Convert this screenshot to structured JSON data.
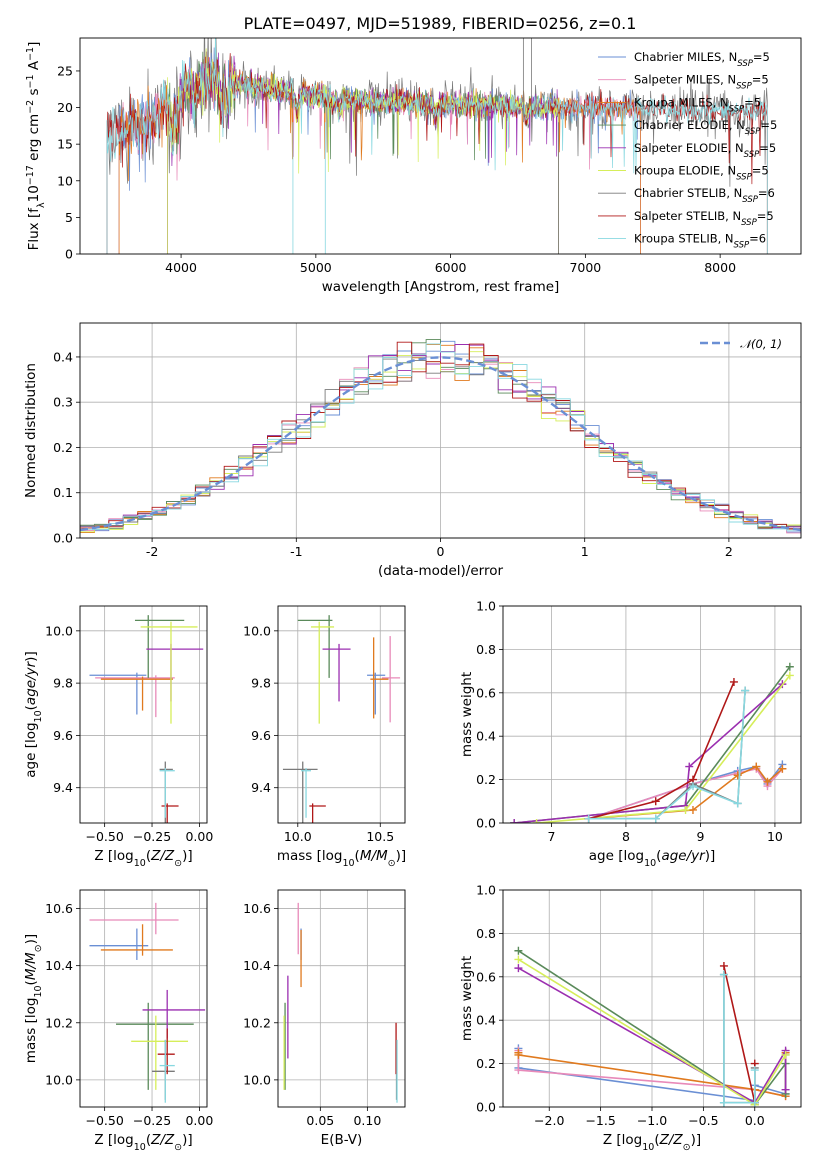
{
  "figure_title": "PLATE=0497, MJD=51989, FIBERID=0256, z=0.1",
  "colors": {
    "Chabrier MILES": "#6a8fd4",
    "Salpeter MILES": "#e88ab9",
    "Kroupa MILES": "#e07a1f",
    "Chabrier ELODIE": "#5a8a5a",
    "Salpeter ELODIE": "#9b2fb0",
    "Kroupa ELODIE": "#d6ee5a",
    "Chabrier STELIB": "#7a7a7a",
    "Salpeter STELIB": "#b01818",
    "Kroupa STELIB": "#88d8e0",
    "normal_curve": "#6a8fd4"
  },
  "chart_data": [
    {
      "type": "line",
      "xlabel": "wavelength [Angstrom, rest frame]",
      "ylabel": "Flux [f_λ 10^-17 erg cm^-2 s^-1 A^-1]",
      "xlim": [
        3250,
        8600
      ],
      "ylim": [
        0,
        29.5
      ],
      "xticks": [
        4000,
        5000,
        6000,
        7000,
        8000
      ],
      "yticks": [
        0,
        5,
        10,
        15,
        20,
        25
      ],
      "grid": false,
      "legend_position": "top-right",
      "legend": [
        {
          "base": "Chabrier MILES, N",
          "sub": "SSP",
          "tail": "=5",
          "color": "#6a8fd4"
        },
        {
          "base": "Salpeter MILES, N",
          "sub": "SSP",
          "tail": "=5",
          "color": "#e88ab9"
        },
        {
          "base": "Kroupa MILES, N",
          "sub": "SSP",
          "tail": "=5",
          "color": "#e07a1f"
        },
        {
          "base": "Chabrier ELODIE, N",
          "sub": "SSP",
          "tail": "=5",
          "color": "#5a8a5a"
        },
        {
          "base": "Salpeter ELODIE, N",
          "sub": "SSP",
          "tail": "=5",
          "color": "#9b2fb0"
        },
        {
          "base": "Kroupa ELODIE, N",
          "sub": "SSP",
          "tail": "=5",
          "color": "#d6ee5a"
        },
        {
          "base": "Chabrier STELIB, N",
          "sub": "SSP",
          "tail": "=6",
          "color": "#7a7a7a"
        },
        {
          "base": "Salpeter STELIB, N",
          "sub": "SSP",
          "tail": "=5",
          "color": "#b01818"
        },
        {
          "base": "Kroupa STELIB, N",
          "sub": "SSP",
          "tail": "=6",
          "color": "#88d8e0"
        }
      ],
      "approx_continuum": {
        "x": [
          3450,
          3600,
          3800,
          4000,
          4200,
          4500,
          5000,
          5500,
          6000,
          6500,
          7000,
          7500,
          8000,
          8350
        ],
        "y": [
          16.5,
          17.0,
          18.5,
          22.5,
          24.0,
          23.0,
          21.5,
          20.8,
          20.5,
          20.2,
          20.0,
          19.8,
          19.5,
          19.2
        ]
      },
      "model_start_x": {
        "Chabrier MILES": 3540,
        "Salpeter MILES": 3540,
        "Kroupa MILES": 3540,
        "Chabrier ELODIE": 3900,
        "Salpeter ELODIE": 3900,
        "Kroupa ELODIE": 3900,
        "Chabrier STELIB": 3450,
        "Salpeter STELIB": 3450,
        "Kroupa STELIB": 3450
      },
      "model_end_x": {
        "Chabrier MILES": 7410,
        "Salpeter MILES": 7410,
        "Kroupa MILES": 7410,
        "Chabrier ELODIE": 6800,
        "Salpeter ELODIE": 6800,
        "Kroupa ELODIE": 6800,
        "Chabrier STELIB": 8350,
        "Salpeter STELIB": 8350,
        "Kroupa STELIB": 8350
      }
    },
    {
      "type": "histogram",
      "xlabel": "(data-model)/error",
      "ylabel": "Normed distribution",
      "xlim": [
        -2.5,
        2.5
      ],
      "ylim": [
        0,
        0.475
      ],
      "xticks": [
        -2,
        -1,
        0,
        1,
        2
      ],
      "yticks": [
        0.0,
        0.1,
        0.2,
        0.3,
        0.4
      ],
      "grid": true,
      "legend_position": "top-right",
      "legend_label": "𝒩(0, 1)",
      "bin_width": 0.1,
      "reference_curve": "normal, mean 0, sigma 1"
    },
    {
      "type": "errorbar",
      "xlabel": "Z [log10(Z/Z⊙)]",
      "ylabel": "age [log10(age/yr)]",
      "xlim": [
        -0.63,
        0.04
      ],
      "ylim": [
        9.265,
        10.095
      ],
      "xticks": [
        -0.5,
        -0.25,
        0.0
      ],
      "xtick_labels": [
        "−0.50",
        "−0.25",
        "0.00"
      ],
      "yticks": [
        9.4,
        9.6,
        9.8,
        10.0
      ],
      "grid": true,
      "points": [
        {
          "model": "Chabrier MILES",
          "x": -0.33,
          "xerr": [
            0.25,
            0.05
          ],
          "y": 9.83,
          "yerr": [
            0.15,
            0.01
          ]
        },
        {
          "model": "Salpeter MILES",
          "x": -0.23,
          "xerr": [
            0.32,
            0.1
          ],
          "y": 9.82,
          "yerr": [
            0.15,
            0.01
          ]
        },
        {
          "model": "Kroupa MILES",
          "x": -0.3,
          "xerr": [
            0.22,
            0.16
          ],
          "y": 9.815,
          "yerr": [
            0.12,
            0.01
          ]
        },
        {
          "model": "Chabrier ELODIE",
          "x": -0.27,
          "xerr": [
            0.07,
            0.19
          ],
          "y": 10.04,
          "yerr": [
            0.22,
            0.02
          ]
        },
        {
          "model": "Salpeter ELODIE",
          "x": -0.15,
          "xerr": [
            0.13,
            0.17
          ],
          "y": 9.93,
          "yerr": [
            0.2,
            0.02
          ]
        },
        {
          "model": "Kroupa ELODIE",
          "x": -0.15,
          "xerr": [
            0.16,
            0.14
          ],
          "y": 10.015,
          "yerr": [
            0.37,
            0.02
          ]
        },
        {
          "model": "Chabrier STELIB",
          "x": -0.18,
          "xerr": [
            0.03,
            0.04
          ],
          "y": 9.47,
          "yerr": [
            0.35,
            0.03
          ]
        },
        {
          "model": "Salpeter STELIB",
          "x": -0.17,
          "xerr": [
            0.03,
            0.06
          ],
          "y": 9.33,
          "yerr": [
            0.31,
            0.01
          ]
        },
        {
          "model": "Kroupa STELIB",
          "x": -0.18,
          "xerr": [
            0.03,
            0.05
          ],
          "y": 9.465,
          "yerr": [
            0.18,
            0.01
          ]
        }
      ]
    },
    {
      "type": "errorbar",
      "xlabel": "mass [log10(M/M⊙)]",
      "ylabel": "",
      "xlim": [
        9.88,
        10.65
      ],
      "ylim": [
        9.265,
        10.095
      ],
      "xticks": [
        10.0,
        10.5
      ],
      "xtick_labels": [
        "10.0",
        "10.5"
      ],
      "yticks": [
        9.4,
        9.6,
        9.8,
        10.0
      ],
      "grid": true,
      "points": [
        {
          "model": "Chabrier MILES",
          "x": 10.47,
          "xerr": [
            0.05,
            0.06
          ],
          "y": 9.83,
          "yerr": [
            0.15,
            0.01
          ]
        },
        {
          "model": "Salpeter MILES",
          "x": 10.56,
          "xerr": [
            0.05,
            0.06
          ],
          "y": 9.82,
          "yerr": [
            0.17,
            0.16
          ]
        },
        {
          "model": "Kroupa MILES",
          "x": 10.46,
          "xerr": [
            0.02,
            0.09
          ],
          "y": 9.815,
          "yerr": [
            0.15,
            0.16
          ]
        },
        {
          "model": "Chabrier ELODIE",
          "x": 10.19,
          "xerr": [
            0.19,
            0.02
          ],
          "y": 10.04,
          "yerr": [
            0.22,
            0.02
          ]
        },
        {
          "model": "Salpeter ELODIE",
          "x": 10.25,
          "xerr": [
            0.1,
            0.07
          ],
          "y": 9.93,
          "yerr": [
            0.2,
            0.02
          ]
        },
        {
          "model": "Kroupa ELODIE",
          "x": 10.13,
          "xerr": [
            0.05,
            0.09
          ],
          "y": 10.015,
          "yerr": [
            0.37,
            0.02
          ]
        },
        {
          "model": "Chabrier STELIB",
          "x": 10.03,
          "xerr": [
            0.12,
            0.09
          ],
          "y": 9.47,
          "yerr": [
            0.3,
            0.03
          ]
        },
        {
          "model": "Salpeter STELIB",
          "x": 10.09,
          "xerr": [
            0.02,
            0.08
          ],
          "y": 9.33,
          "yerr": [
            0.31,
            0.01
          ]
        },
        {
          "model": "Kroupa STELIB",
          "x": 10.05,
          "xerr": [
            0.03,
            0.03
          ],
          "y": 9.465,
          "yerr": [
            0.18,
            0.01
          ]
        }
      ]
    },
    {
      "type": "line",
      "xlabel": "age [log10(age/yr)]",
      "ylabel": "mass weight",
      "xlim": [
        6.35,
        10.35
      ],
      "ylim": [
        0,
        1.0
      ],
      "xticks": [
        7,
        8,
        9,
        10
      ],
      "yticks": [
        0.0,
        0.2,
        0.4,
        0.6,
        0.8,
        1.0
      ],
      "grid": true,
      "series": [
        {
          "model": "Chabrier MILES",
          "x": [
            7.5,
            8.9,
            9.5,
            9.75,
            9.9,
            10.1
          ],
          "y": [
            0.02,
            0.18,
            0.24,
            0.26,
            0.18,
            0.27
          ]
        },
        {
          "model": "Salpeter MILES",
          "x": [
            7.5,
            8.9,
            9.5,
            9.75,
            9.9,
            10.1
          ],
          "y": [
            0.02,
            0.18,
            0.23,
            0.25,
            0.17,
            0.25
          ]
        },
        {
          "model": "Kroupa MILES",
          "x": [
            7.5,
            8.9,
            9.5,
            9.75,
            9.9,
            10.1
          ],
          "y": [
            0.02,
            0.06,
            0.22,
            0.26,
            0.19,
            0.25
          ]
        },
        {
          "model": "Chabrier ELODIE",
          "x": [
            6.5,
            8.8,
            10.2
          ],
          "y": [
            0.0,
            0.08,
            0.72
          ]
        },
        {
          "model": "Salpeter ELODIE",
          "x": [
            6.5,
            8.8,
            8.85,
            10.1
          ],
          "y": [
            0.0,
            0.08,
            0.26,
            0.64
          ]
        },
        {
          "model": "Kroupa ELODIE",
          "x": [
            6.8,
            8.8,
            10.2
          ],
          "y": [
            0.0,
            0.06,
            0.68
          ]
        },
        {
          "model": "Chabrier STELIB",
          "x": [
            7.5,
            8.4,
            8.9,
            9.5,
            9.6
          ],
          "y": [
            0.02,
            0.02,
            0.18,
            0.09,
            0.61
          ]
        },
        {
          "model": "Salpeter STELIB",
          "x": [
            7.5,
            8.4,
            8.9,
            9.45
          ],
          "y": [
            0.02,
            0.1,
            0.2,
            0.65
          ]
        },
        {
          "model": "Kroupa STELIB",
          "x": [
            7.5,
            8.4,
            8.9,
            9.5,
            9.6
          ],
          "y": [
            0.02,
            0.02,
            0.17,
            0.09,
            0.61
          ]
        }
      ]
    },
    {
      "type": "errorbar",
      "xlabel": "Z [log10(Z/Z⊙)]",
      "ylabel": "mass [log10(M/M⊙)]",
      "xlim": [
        -0.63,
        0.04
      ],
      "ylim": [
        9.905,
        10.665
      ],
      "xticks": [
        -0.5,
        -0.25,
        0.0
      ],
      "xtick_labels": [
        "−0.50",
        "−0.25",
        "0.00"
      ],
      "yticks": [
        10.0,
        10.2,
        10.4,
        10.6
      ],
      "grid": true,
      "points": [
        {
          "model": "Chabrier MILES",
          "x": -0.33,
          "xerr": [
            0.25,
            0.06
          ],
          "y": 10.47,
          "yerr": [
            0.05,
            0.06
          ]
        },
        {
          "model": "Salpeter MILES",
          "x": -0.23,
          "xerr": [
            0.35,
            0.12
          ],
          "y": 10.56,
          "yerr": [
            0.05,
            0.06
          ]
        },
        {
          "model": "Kroupa MILES",
          "x": -0.3,
          "xerr": [
            0.22,
            0.16
          ],
          "y": 10.455,
          "yerr": [
            0.02,
            0.09
          ]
        },
        {
          "model": "Chabrier ELODIE",
          "x": -0.27,
          "xerr": [
            0.17,
            0.24
          ],
          "y": 10.195,
          "yerr": [
            0.23,
            0.075
          ]
        },
        {
          "model": "Salpeter ELODIE",
          "x": -0.17,
          "xerr": [
            0.13,
            0.2
          ],
          "y": 10.245,
          "yerr": [
            0.1,
            0.07
          ]
        },
        {
          "model": "Kroupa ELODIE",
          "x": -0.23,
          "xerr": [
            0.13,
            0.17
          ],
          "y": 10.135,
          "yerr": [
            0.17,
            0.09
          ]
        },
        {
          "model": "Chabrier STELIB",
          "x": -0.18,
          "xerr": [
            0.07,
            0.05
          ],
          "y": 10.03,
          "yerr": [
            0.1,
            0.11
          ]
        },
        {
          "model": "Salpeter STELIB",
          "x": -0.17,
          "xerr": [
            0.05,
            0.04
          ],
          "y": 10.09,
          "yerr": [
            0.07,
            0.09
          ]
        },
        {
          "model": "Kroupa STELIB",
          "x": -0.18,
          "xerr": [
            0.03,
            0.05
          ],
          "y": 10.05,
          "yerr": [
            0.13,
            0.09
          ]
        }
      ]
    },
    {
      "type": "errorbar",
      "xlabel": "E(B-V)",
      "ylabel": "",
      "xlim": [
        0.005,
        0.14
      ],
      "ylim": [
        9.905,
        10.665
      ],
      "xticks": [
        0.05,
        0.1
      ],
      "xtick_labels": [
        "0.05",
        "0.10"
      ],
      "yticks": [
        10.0,
        10.2,
        10.4,
        10.6
      ],
      "grid": true,
      "points": [
        {
          "model": "Chabrier MILES",
          "x": 0.0295,
          "y": 10.47,
          "yerr": [
            0.05,
            0.06
          ]
        },
        {
          "model": "Salpeter MILES",
          "x": 0.0265,
          "y": 10.56,
          "yerr": [
            0.12,
            0.06
          ]
        },
        {
          "model": "Kroupa MILES",
          "x": 0.0295,
          "y": 10.455,
          "yerr": [
            0.13,
            0.07
          ]
        },
        {
          "model": "Chabrier ELODIE",
          "x": 0.0125,
          "y": 10.195,
          "yerr": [
            0.23,
            0.075
          ]
        },
        {
          "model": "Salpeter ELODIE",
          "x": 0.0155,
          "y": 10.245,
          "yerr": [
            0.17,
            0.12
          ]
        },
        {
          "model": "Kroupa ELODIE",
          "x": 0.0115,
          "y": 10.135,
          "yerr": [
            0.17,
            0.09
          ]
        },
        {
          "model": "Chabrier STELIB",
          "x": 0.131,
          "y": 10.03,
          "yerr": [
            0.1,
            0.11
          ]
        },
        {
          "model": "Salpeter STELIB",
          "x": 0.1305,
          "y": 10.09,
          "yerr": [
            0.07,
            0.11
          ]
        },
        {
          "model": "Kroupa STELIB",
          "x": 0.1315,
          "y": 10.05,
          "yerr": [
            0.13,
            0.09
          ]
        }
      ]
    },
    {
      "type": "line",
      "xlabel": "Z [log10(Z/Z⊙)]",
      "ylabel": "mass weight",
      "xlim": [
        -2.45,
        0.45
      ],
      "ylim": [
        0,
        1.0
      ],
      "xticks": [
        -2.0,
        -1.5,
        -1.0,
        -0.5,
        0.0
      ],
      "xtick_labels": [
        "−2.0",
        "−1.5",
        "−1.0",
        "−0.5",
        "0.0"
      ],
      "yticks": [
        0.0,
        0.2,
        0.4,
        0.6,
        0.8,
        1.0
      ],
      "grid": true,
      "series": [
        {
          "model": "Chabrier MILES",
          "x": [
            -2.3,
            -2.3,
            0.0,
            0.0,
            0.3,
            0.3
          ],
          "y": [
            0.27,
            0.18,
            0.03,
            0.1,
            0.06,
            0.24
          ]
        },
        {
          "model": "Salpeter MILES",
          "x": [
            -2.3,
            -2.3,
            0.0,
            0.3
          ],
          "y": [
            0.26,
            0.17,
            0.08,
            0.05
          ]
        },
        {
          "model": "Kroupa MILES",
          "x": [
            -2.3,
            -2.3,
            0.0,
            0.3,
            0.3
          ],
          "y": [
            0.25,
            0.24,
            0.08,
            0.05,
            0.25
          ]
        },
        {
          "model": "Chabrier ELODIE",
          "x": [
            -2.3,
            0.0,
            0.3,
            0.3
          ],
          "y": [
            0.72,
            0.01,
            0.2,
            0.06
          ]
        },
        {
          "model": "Salpeter ELODIE",
          "x": [
            -2.3,
            0.0,
            0.3,
            0.3
          ],
          "y": [
            0.64,
            0.02,
            0.26,
            0.08
          ]
        },
        {
          "model": "Kroupa ELODIE",
          "x": [
            -2.3,
            0.0,
            0.3
          ],
          "y": [
            0.68,
            0.01,
            0.24
          ]
        },
        {
          "model": "Chabrier STELIB",
          "x": [
            -0.3,
            -0.3,
            0.0,
            0.0
          ],
          "y": [
            0.61,
            0.02,
            0.02,
            0.18
          ]
        },
        {
          "model": "Salpeter STELIB",
          "x": [
            -0.3,
            0.0,
            0.0
          ],
          "y": [
            0.65,
            0.02,
            0.2
          ]
        },
        {
          "model": "Kroupa STELIB",
          "x": [
            -0.3,
            -0.3,
            0.0,
            0.0
          ],
          "y": [
            0.61,
            0.02,
            0.02,
            0.17
          ]
        }
      ]
    }
  ]
}
